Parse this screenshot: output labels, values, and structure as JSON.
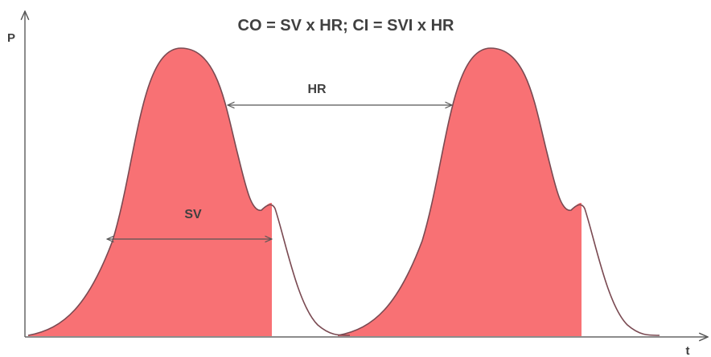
{
  "title": "CO = SV x HR; CI = SVI x HR",
  "axes": {
    "y_label": "P",
    "x_label": "t"
  },
  "labels": {
    "stroke_volume": "SV",
    "heart_rate": "HR"
  }
}
